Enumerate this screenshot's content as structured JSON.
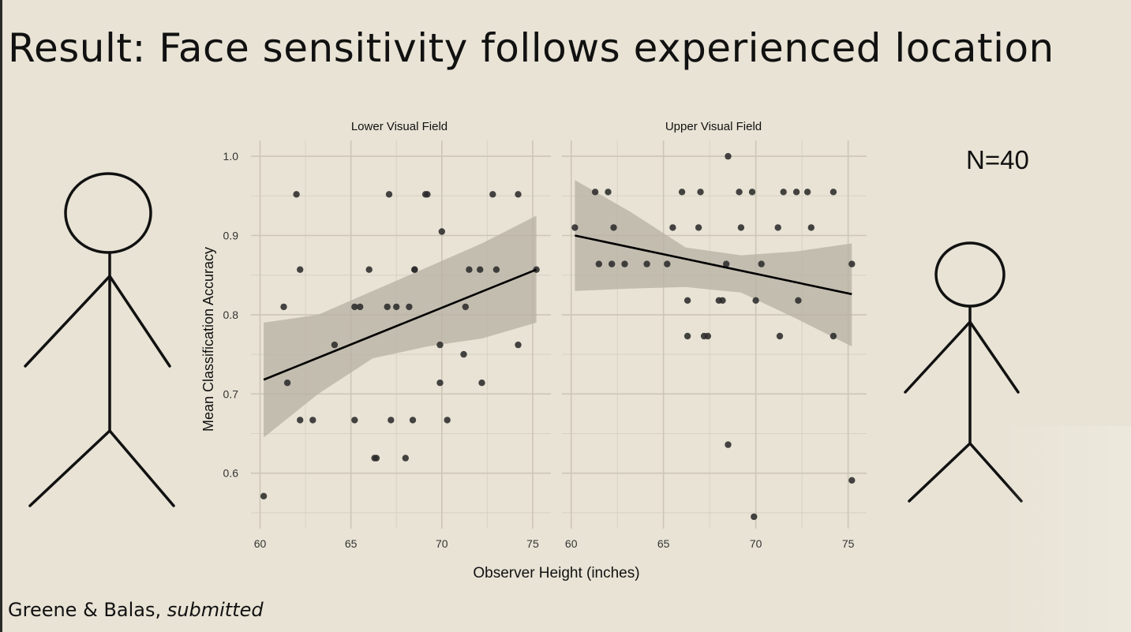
{
  "slide": {
    "title": "Result: Face sensitivity follows experienced location",
    "n_label": "N=40",
    "citation_authors": "Greene & Balas,",
    "citation_status": "submitted"
  },
  "colors": {
    "background": "#e8e3d5",
    "point": "#2b2b2b",
    "line": "#000000",
    "ribbon": "#b7b0a3"
  },
  "chart_data": {
    "type": "scatter",
    "facets": [
      "Lower Visual Field",
      "Upper Visual Field"
    ],
    "xlabel": "Observer Height (inches)",
    "ylabel": "Mean Classification Accuracy",
    "xlim": [
      59.5,
      76
    ],
    "ylim": [
      0.53,
      1.02
    ],
    "xticks": [
      60,
      65,
      70,
      75
    ],
    "yticks": [
      0.6,
      0.7,
      0.8,
      0.9,
      1.0
    ],
    "ytick_labels": [
      "0.6",
      "0.7",
      "0.8",
      "0.9",
      "1.0"
    ],
    "panels": [
      {
        "name": "Lower Visual Field",
        "points": [
          [
            60.2,
            0.571
          ],
          [
            61.3,
            0.81
          ],
          [
            61.5,
            0.714
          ],
          [
            62.0,
            0.952
          ],
          [
            62.2,
            0.667
          ],
          [
            62.2,
            0.857
          ],
          [
            62.9,
            0.667
          ],
          [
            64.1,
            0.762
          ],
          [
            65.2,
            0.81
          ],
          [
            65.2,
            0.667
          ],
          [
            65.5,
            0.81
          ],
          [
            66.0,
            0.857
          ],
          [
            66.3,
            0.619
          ],
          [
            66.4,
            0.619
          ],
          [
            67.0,
            0.81
          ],
          [
            67.1,
            0.952
          ],
          [
            67.2,
            0.667
          ],
          [
            67.5,
            0.81
          ],
          [
            68.0,
            0.619
          ],
          [
            68.2,
            0.81
          ],
          [
            68.4,
            0.667
          ],
          [
            68.5,
            0.857
          ],
          [
            68.5,
            0.857
          ],
          [
            69.1,
            0.952
          ],
          [
            69.2,
            0.952
          ],
          [
            69.9,
            0.762
          ],
          [
            69.9,
            0.714
          ],
          [
            70.0,
            0.905
          ],
          [
            70.3,
            0.667
          ],
          [
            71.2,
            0.75
          ],
          [
            71.3,
            0.81
          ],
          [
            71.5,
            0.857
          ],
          [
            72.1,
            0.857
          ],
          [
            72.2,
            0.714
          ],
          [
            72.8,
            0.952
          ],
          [
            73.0,
            0.857
          ],
          [
            74.2,
            0.952
          ],
          [
            74.2,
            0.762
          ],
          [
            75.2,
            0.857
          ]
        ],
        "fit": {
          "x": [
            60.2,
            75.2
          ],
          "y": [
            0.718,
            0.857
          ]
        },
        "ci_lower": [
          0.645,
          0.7,
          0.745,
          0.76,
          0.77,
          0.79
        ],
        "ci_upper": [
          0.79,
          0.8,
          0.83,
          0.86,
          0.89,
          0.925
        ]
      },
      {
        "name": "Upper Visual Field",
        "points": [
          [
            60.2,
            0.91
          ],
          [
            61.3,
            0.955
          ],
          [
            61.5,
            0.864
          ],
          [
            62.0,
            0.955
          ],
          [
            62.2,
            0.864
          ],
          [
            62.3,
            0.91
          ],
          [
            62.9,
            0.864
          ],
          [
            64.1,
            0.864
          ],
          [
            65.2,
            0.864
          ],
          [
            65.5,
            0.91
          ],
          [
            66.0,
            0.955
          ],
          [
            66.3,
            0.818
          ],
          [
            66.3,
            0.773
          ],
          [
            66.9,
            0.91
          ],
          [
            67.0,
            0.955
          ],
          [
            67.2,
            0.773
          ],
          [
            67.4,
            0.773
          ],
          [
            68.0,
            0.818
          ],
          [
            68.2,
            0.818
          ],
          [
            68.4,
            0.864
          ],
          [
            68.5,
            1.0
          ],
          [
            68.5,
            0.636
          ],
          [
            69.1,
            0.955
          ],
          [
            69.2,
            0.91
          ],
          [
            69.8,
            0.955
          ],
          [
            69.9,
            0.545
          ],
          [
            70.0,
            0.818
          ],
          [
            70.3,
            0.864
          ],
          [
            71.2,
            0.91
          ],
          [
            71.3,
            0.773
          ],
          [
            71.5,
            0.955
          ],
          [
            72.2,
            0.955
          ],
          [
            72.3,
            0.818
          ],
          [
            72.8,
            0.955
          ],
          [
            73.0,
            0.91
          ],
          [
            74.2,
            0.955
          ],
          [
            74.2,
            0.773
          ],
          [
            75.2,
            0.864
          ],
          [
            75.2,
            0.591
          ]
        ],
        "fit": {
          "x": [
            60.2,
            75.2
          ],
          "y": [
            0.9,
            0.826
          ]
        },
        "ci_lower": [
          0.83,
          0.833,
          0.835,
          0.828,
          0.795,
          0.76
        ],
        "ci_upper": [
          0.97,
          0.93,
          0.885,
          0.875,
          0.88,
          0.89
        ]
      }
    ],
    "ci_x": [
      60.2,
      63.2,
      66.2,
      69.2,
      72.2,
      75.2
    ]
  }
}
